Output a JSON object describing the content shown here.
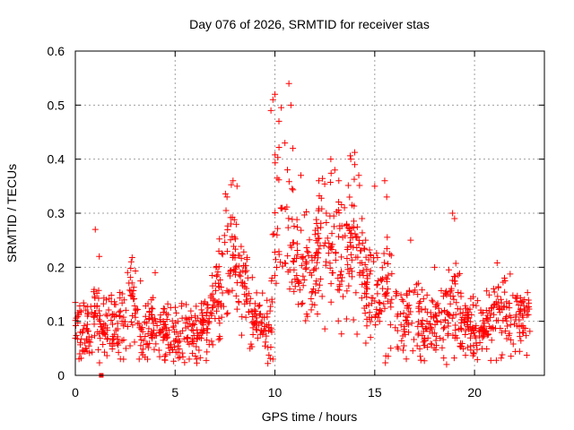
{
  "chart_data": {
    "type": "scatter",
    "title": "Day 076 of 2026, SRMTID for receiver stas",
    "xlabel": "GPS time / hours",
    "ylabel": "SRMTID / TECUs",
    "xlim": [
      0,
      23.5
    ],
    "ylim": [
      0,
      0.6
    ],
    "xticks": [
      0,
      5,
      10,
      15,
      20
    ],
    "yticks": [
      0,
      0.1,
      0.2,
      0.3,
      0.4,
      0.5,
      0.6
    ],
    "xtick_labels": [
      "0",
      "5",
      "10",
      "15",
      "20"
    ],
    "ytick_labels": [
      "0",
      "0.1",
      "0.2",
      "0.3",
      "0.4",
      "0.5",
      "0.6"
    ],
    "grid": true,
    "marker": "+",
    "color": "#ff0000",
    "extra_points": [
      {
        "x": 1.3,
        "y": 0.0,
        "marker": "square"
      }
    ],
    "profile": [
      [
        0.0,
        0.09,
        0.03
      ],
      [
        0.5,
        0.08,
        0.025
      ],
      [
        1.0,
        0.11,
        0.04
      ],
      [
        1.5,
        0.1,
        0.03
      ],
      [
        2.0,
        0.09,
        0.03
      ],
      [
        2.5,
        0.1,
        0.03
      ],
      [
        2.8,
        0.15,
        0.04
      ],
      [
        3.2,
        0.09,
        0.03
      ],
      [
        4.0,
        0.08,
        0.03
      ],
      [
        4.5,
        0.09,
        0.03
      ],
      [
        5.0,
        0.09,
        0.03
      ],
      [
        5.5,
        0.08,
        0.03
      ],
      [
        6.0,
        0.07,
        0.025
      ],
      [
        6.5,
        0.1,
        0.03
      ],
      [
        7.0,
        0.14,
        0.04
      ],
      [
        7.5,
        0.22,
        0.06
      ],
      [
        7.8,
        0.26,
        0.06
      ],
      [
        8.0,
        0.2,
        0.05
      ],
      [
        8.5,
        0.15,
        0.04
      ],
      [
        9.0,
        0.1,
        0.03
      ],
      [
        9.5,
        0.09,
        0.03
      ],
      [
        9.8,
        0.08,
        0.04
      ],
      [
        10.0,
        0.3,
        0.1
      ],
      [
        10.3,
        0.3,
        0.08
      ],
      [
        10.6,
        0.3,
        0.08
      ],
      [
        11.0,
        0.2,
        0.05
      ],
      [
        11.5,
        0.18,
        0.05
      ],
      [
        12.0,
        0.2,
        0.06
      ],
      [
        12.5,
        0.25,
        0.06
      ],
      [
        13.0,
        0.24,
        0.06
      ],
      [
        13.5,
        0.22,
        0.06
      ],
      [
        14.0,
        0.25,
        0.06
      ],
      [
        14.5,
        0.18,
        0.05
      ],
      [
        15.0,
        0.15,
        0.05
      ],
      [
        15.5,
        0.18,
        0.05
      ],
      [
        16.0,
        0.12,
        0.04
      ],
      [
        16.5,
        0.1,
        0.03
      ],
      [
        17.0,
        0.12,
        0.04
      ],
      [
        17.5,
        0.08,
        0.03
      ],
      [
        18.0,
        0.09,
        0.03
      ],
      [
        18.5,
        0.1,
        0.03
      ],
      [
        19.0,
        0.13,
        0.04
      ],
      [
        19.5,
        0.1,
        0.03
      ],
      [
        20.0,
        0.08,
        0.03
      ],
      [
        20.5,
        0.09,
        0.03
      ],
      [
        21.0,
        0.12,
        0.04
      ],
      [
        21.5,
        0.11,
        0.04
      ],
      [
        22.0,
        0.1,
        0.03
      ],
      [
        22.5,
        0.09,
        0.03
      ],
      [
        22.8,
        0.1,
        0.03
      ]
    ],
    "peaks": [
      {
        "x": 1.0,
        "y": 0.27
      },
      {
        "x": 1.2,
        "y": 0.22
      },
      {
        "x": 2.8,
        "y": 0.21
      },
      {
        "x": 4.0,
        "y": 0.19
      },
      {
        "x": 7.6,
        "y": 0.33
      },
      {
        "x": 7.9,
        "y": 0.36
      },
      {
        "x": 8.1,
        "y": 0.35
      },
      {
        "x": 9.8,
        "y": 0.49
      },
      {
        "x": 9.9,
        "y": 0.51
      },
      {
        "x": 10.0,
        "y": 0.52
      },
      {
        "x": 10.2,
        "y": 0.47
      },
      {
        "x": 10.5,
        "y": 0.43
      },
      {
        "x": 10.7,
        "y": 0.54
      },
      {
        "x": 10.8,
        "y": 0.5
      },
      {
        "x": 10.9,
        "y": 0.42
      },
      {
        "x": 11.3,
        "y": 0.37
      },
      {
        "x": 12.2,
        "y": 0.36
      },
      {
        "x": 12.8,
        "y": 0.4
      },
      {
        "x": 13.0,
        "y": 0.38
      },
      {
        "x": 13.2,
        "y": 0.36
      },
      {
        "x": 13.8,
        "y": 0.4
      },
      {
        "x": 14.0,
        "y": 0.39
      },
      {
        "x": 14.2,
        "y": 0.37
      },
      {
        "x": 15.0,
        "y": 0.35
      },
      {
        "x": 15.5,
        "y": 0.36
      },
      {
        "x": 15.6,
        "y": 0.33
      },
      {
        "x": 16.8,
        "y": 0.25
      },
      {
        "x": 18.0,
        "y": 0.2
      },
      {
        "x": 18.9,
        "y": 0.3
      },
      {
        "x": 19.0,
        "y": 0.29
      },
      {
        "x": 21.5,
        "y": 0.18
      },
      {
        "x": 22.5,
        "y": 0.14
      },
      {
        "x": 18.6,
        "y": 0.02
      },
      {
        "x": 9.9,
        "y": 0.03
      },
      {
        "x": 3.2,
        "y": 0.03
      }
    ],
    "noise_seed": 76,
    "points_per_hour": 60
  }
}
